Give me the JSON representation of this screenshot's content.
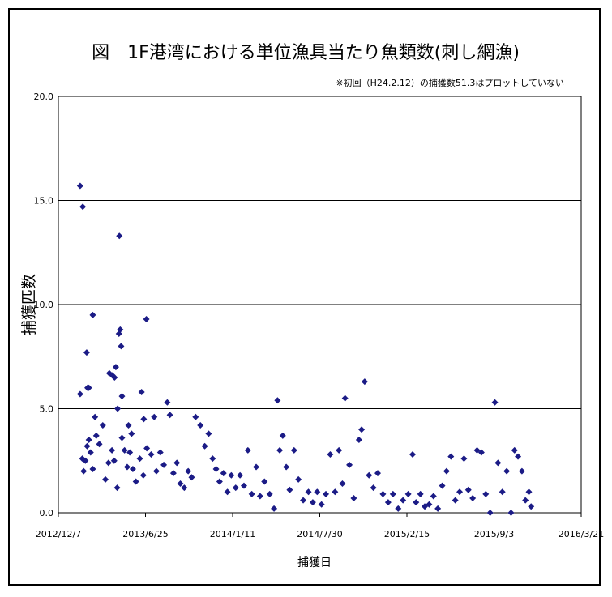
{
  "chart_data": {
    "type": "scatter",
    "title": "図　1F港湾における単位漁具当たり魚類数(刺し網漁)",
    "note": "※初回（H24.2.12）の捕獲数51.3はプロットしていない",
    "xlabel": "捕獲日",
    "ylabel": "捕獲匹数",
    "xlim": [
      "2012-12-07",
      "2016-03-21"
    ],
    "ylim": [
      0,
      20
    ],
    "x_ticks": [
      "2012/12/7",
      "2013/6/25",
      "2014/1/11",
      "2014/7/30",
      "2015/2/15",
      "2015/9/3",
      "2016/3/21"
    ],
    "y_ticks": [
      "0.0",
      "5.0",
      "10.0",
      "15.0",
      "20.0"
    ],
    "grid": "horizontal",
    "marker": "diamond",
    "color": "#1b1b86",
    "series": [
      {
        "values": [
          [
            "2013-01-26",
            15.7
          ],
          [
            "2013-02-01",
            14.7
          ],
          [
            "2013-04-26",
            13.3
          ],
          [
            "2013-06-27",
            9.3
          ],
          [
            "2013-02-24",
            9.5
          ],
          [
            "2013-04-28",
            8.8
          ],
          [
            "2013-04-25",
            8.6
          ],
          [
            "2013-04-30",
            8.0
          ],
          [
            "2013-02-10",
            7.7
          ],
          [
            "2013-04-18",
            7.0
          ],
          [
            "2013-04-03",
            6.7
          ],
          [
            "2013-04-10",
            6.6
          ],
          [
            "2013-04-15",
            6.5
          ],
          [
            "2013-02-12",
            6.0
          ],
          [
            "2013-02-15",
            6.0
          ],
          [
            "2013-01-26",
            5.7
          ],
          [
            "2013-06-16",
            5.8
          ],
          [
            "2013-05-02",
            5.6
          ],
          [
            "2013-04-22",
            5.0
          ],
          [
            "2013-03-01",
            4.6
          ],
          [
            "2013-06-21",
            4.5
          ],
          [
            "2013-07-15",
            4.6
          ],
          [
            "2013-05-17",
            4.2
          ],
          [
            "2013-05-24",
            3.8
          ],
          [
            "2013-01-31",
            2.6
          ],
          [
            "2013-02-03",
            2.0
          ],
          [
            "2013-02-07",
            2.5
          ],
          [
            "2013-02-11",
            3.2
          ],
          [
            "2013-02-15",
            3.5
          ],
          [
            "2013-02-19",
            2.9
          ],
          [
            "2013-02-24",
            2.1
          ],
          [
            "2013-03-04",
            3.7
          ],
          [
            "2013-03-11",
            3.3
          ],
          [
            "2013-03-19",
            4.2
          ],
          [
            "2013-03-25",
            1.6
          ],
          [
            "2013-04-01",
            2.4
          ],
          [
            "2013-04-09",
            3.0
          ],
          [
            "2013-04-14",
            2.5
          ],
          [
            "2013-04-21",
            1.2
          ],
          [
            "2013-05-02",
            3.6
          ],
          [
            "2013-05-08",
            3.0
          ],
          [
            "2013-05-14",
            2.2
          ],
          [
            "2013-05-20",
            2.9
          ],
          [
            "2013-05-27",
            2.1
          ],
          [
            "2013-06-03",
            1.5
          ],
          [
            "2013-06-12",
            2.6
          ],
          [
            "2013-06-20",
            1.8
          ],
          [
            "2013-06-28",
            3.1
          ],
          [
            "2013-07-08",
            2.8
          ],
          [
            "2013-07-20",
            2.0
          ],
          [
            "2013-07-29",
            2.9
          ],
          [
            "2013-08-06",
            2.3
          ],
          [
            "2013-08-14",
            5.3
          ],
          [
            "2013-08-20",
            4.7
          ],
          [
            "2013-08-28",
            1.9
          ],
          [
            "2013-09-05",
            2.4
          ],
          [
            "2013-09-13",
            1.4
          ],
          [
            "2013-09-22",
            1.2
          ],
          [
            "2013-10-01",
            2.0
          ],
          [
            "2013-10-09",
            1.7
          ],
          [
            "2013-10-18",
            4.6
          ],
          [
            "2013-10-29",
            4.2
          ],
          [
            "2013-11-08",
            3.2
          ],
          [
            "2013-11-17",
            3.8
          ],
          [
            "2013-11-26",
            2.6
          ],
          [
            "2013-12-04",
            2.1
          ],
          [
            "2013-12-12",
            1.5
          ],
          [
            "2013-12-21",
            1.9
          ],
          [
            "2013-12-30",
            1.0
          ],
          [
            "2014-01-08",
            1.8
          ],
          [
            "2014-01-18",
            1.2
          ],
          [
            "2014-01-28",
            1.8
          ],
          [
            "2014-02-06",
            1.3
          ],
          [
            "2014-02-15",
            3.0
          ],
          [
            "2014-02-24",
            0.9
          ],
          [
            "2014-03-06",
            2.2
          ],
          [
            "2014-03-15",
            0.8
          ],
          [
            "2014-03-25",
            1.5
          ],
          [
            "2014-04-06",
            0.9
          ],
          [
            "2014-04-16",
            0.2
          ],
          [
            "2014-04-24",
            5.4
          ],
          [
            "2014-04-29",
            3.0
          ],
          [
            "2014-05-06",
            3.7
          ],
          [
            "2014-05-14",
            2.2
          ],
          [
            "2014-05-22",
            1.1
          ],
          [
            "2014-06-01",
            3.0
          ],
          [
            "2014-06-11",
            1.6
          ],
          [
            "2014-06-22",
            0.6
          ],
          [
            "2014-07-04",
            1.0
          ],
          [
            "2014-07-14",
            0.5
          ],
          [
            "2014-07-24",
            1.0
          ],
          [
            "2014-08-03",
            0.4
          ],
          [
            "2014-08-13",
            0.9
          ],
          [
            "2014-08-23",
            2.8
          ],
          [
            "2014-09-03",
            1.0
          ],
          [
            "2014-09-12",
            3.0
          ],
          [
            "2014-09-20",
            1.4
          ],
          [
            "2014-09-26",
            5.5
          ],
          [
            "2014-10-06",
            2.3
          ],
          [
            "2014-10-16",
            0.7
          ],
          [
            "2014-10-28",
            3.5
          ],
          [
            "2014-11-03",
            4.0
          ],
          [
            "2014-11-10",
            6.3
          ],
          [
            "2014-11-20",
            1.8
          ],
          [
            "2014-11-30",
            1.2
          ],
          [
            "2014-12-10",
            1.9
          ],
          [
            "2014-12-22",
            0.9
          ],
          [
            "2015-01-03",
            0.5
          ],
          [
            "2015-01-14",
            0.9
          ],
          [
            "2015-01-26",
            0.2
          ],
          [
            "2015-02-06",
            0.6
          ],
          [
            "2015-02-18",
            0.9
          ],
          [
            "2015-02-28",
            2.8
          ],
          [
            "2015-03-08",
            0.5
          ],
          [
            "2015-03-18",
            0.9
          ],
          [
            "2015-03-28",
            0.3
          ],
          [
            "2015-04-07",
            0.4
          ],
          [
            "2015-04-17",
            0.8
          ],
          [
            "2015-04-27",
            0.2
          ],
          [
            "2015-05-07",
            1.3
          ],
          [
            "2015-05-17",
            2.0
          ],
          [
            "2015-05-27",
            2.7
          ],
          [
            "2015-06-06",
            0.6
          ],
          [
            "2015-06-16",
            1.0
          ],
          [
            "2015-06-26",
            2.6
          ],
          [
            "2015-07-06",
            1.1
          ],
          [
            "2015-07-16",
            0.7
          ],
          [
            "2015-07-26",
            3.0
          ],
          [
            "2015-08-05",
            2.9
          ],
          [
            "2015-08-15",
            0.9
          ],
          [
            "2015-08-25",
            0.0
          ],
          [
            "2015-09-05",
            5.3
          ],
          [
            "2015-09-12",
            2.4
          ],
          [
            "2015-09-22",
            1.0
          ],
          [
            "2015-10-02",
            2.0
          ],
          [
            "2015-10-12",
            0.0
          ],
          [
            "2015-10-20",
            3.0
          ],
          [
            "2015-10-28",
            2.7
          ],
          [
            "2015-11-06",
            2.0
          ],
          [
            "2015-11-14",
            0.6
          ],
          [
            "2015-11-22",
            1.0
          ],
          [
            "2015-11-27",
            0.3
          ]
        ]
      }
    ]
  }
}
